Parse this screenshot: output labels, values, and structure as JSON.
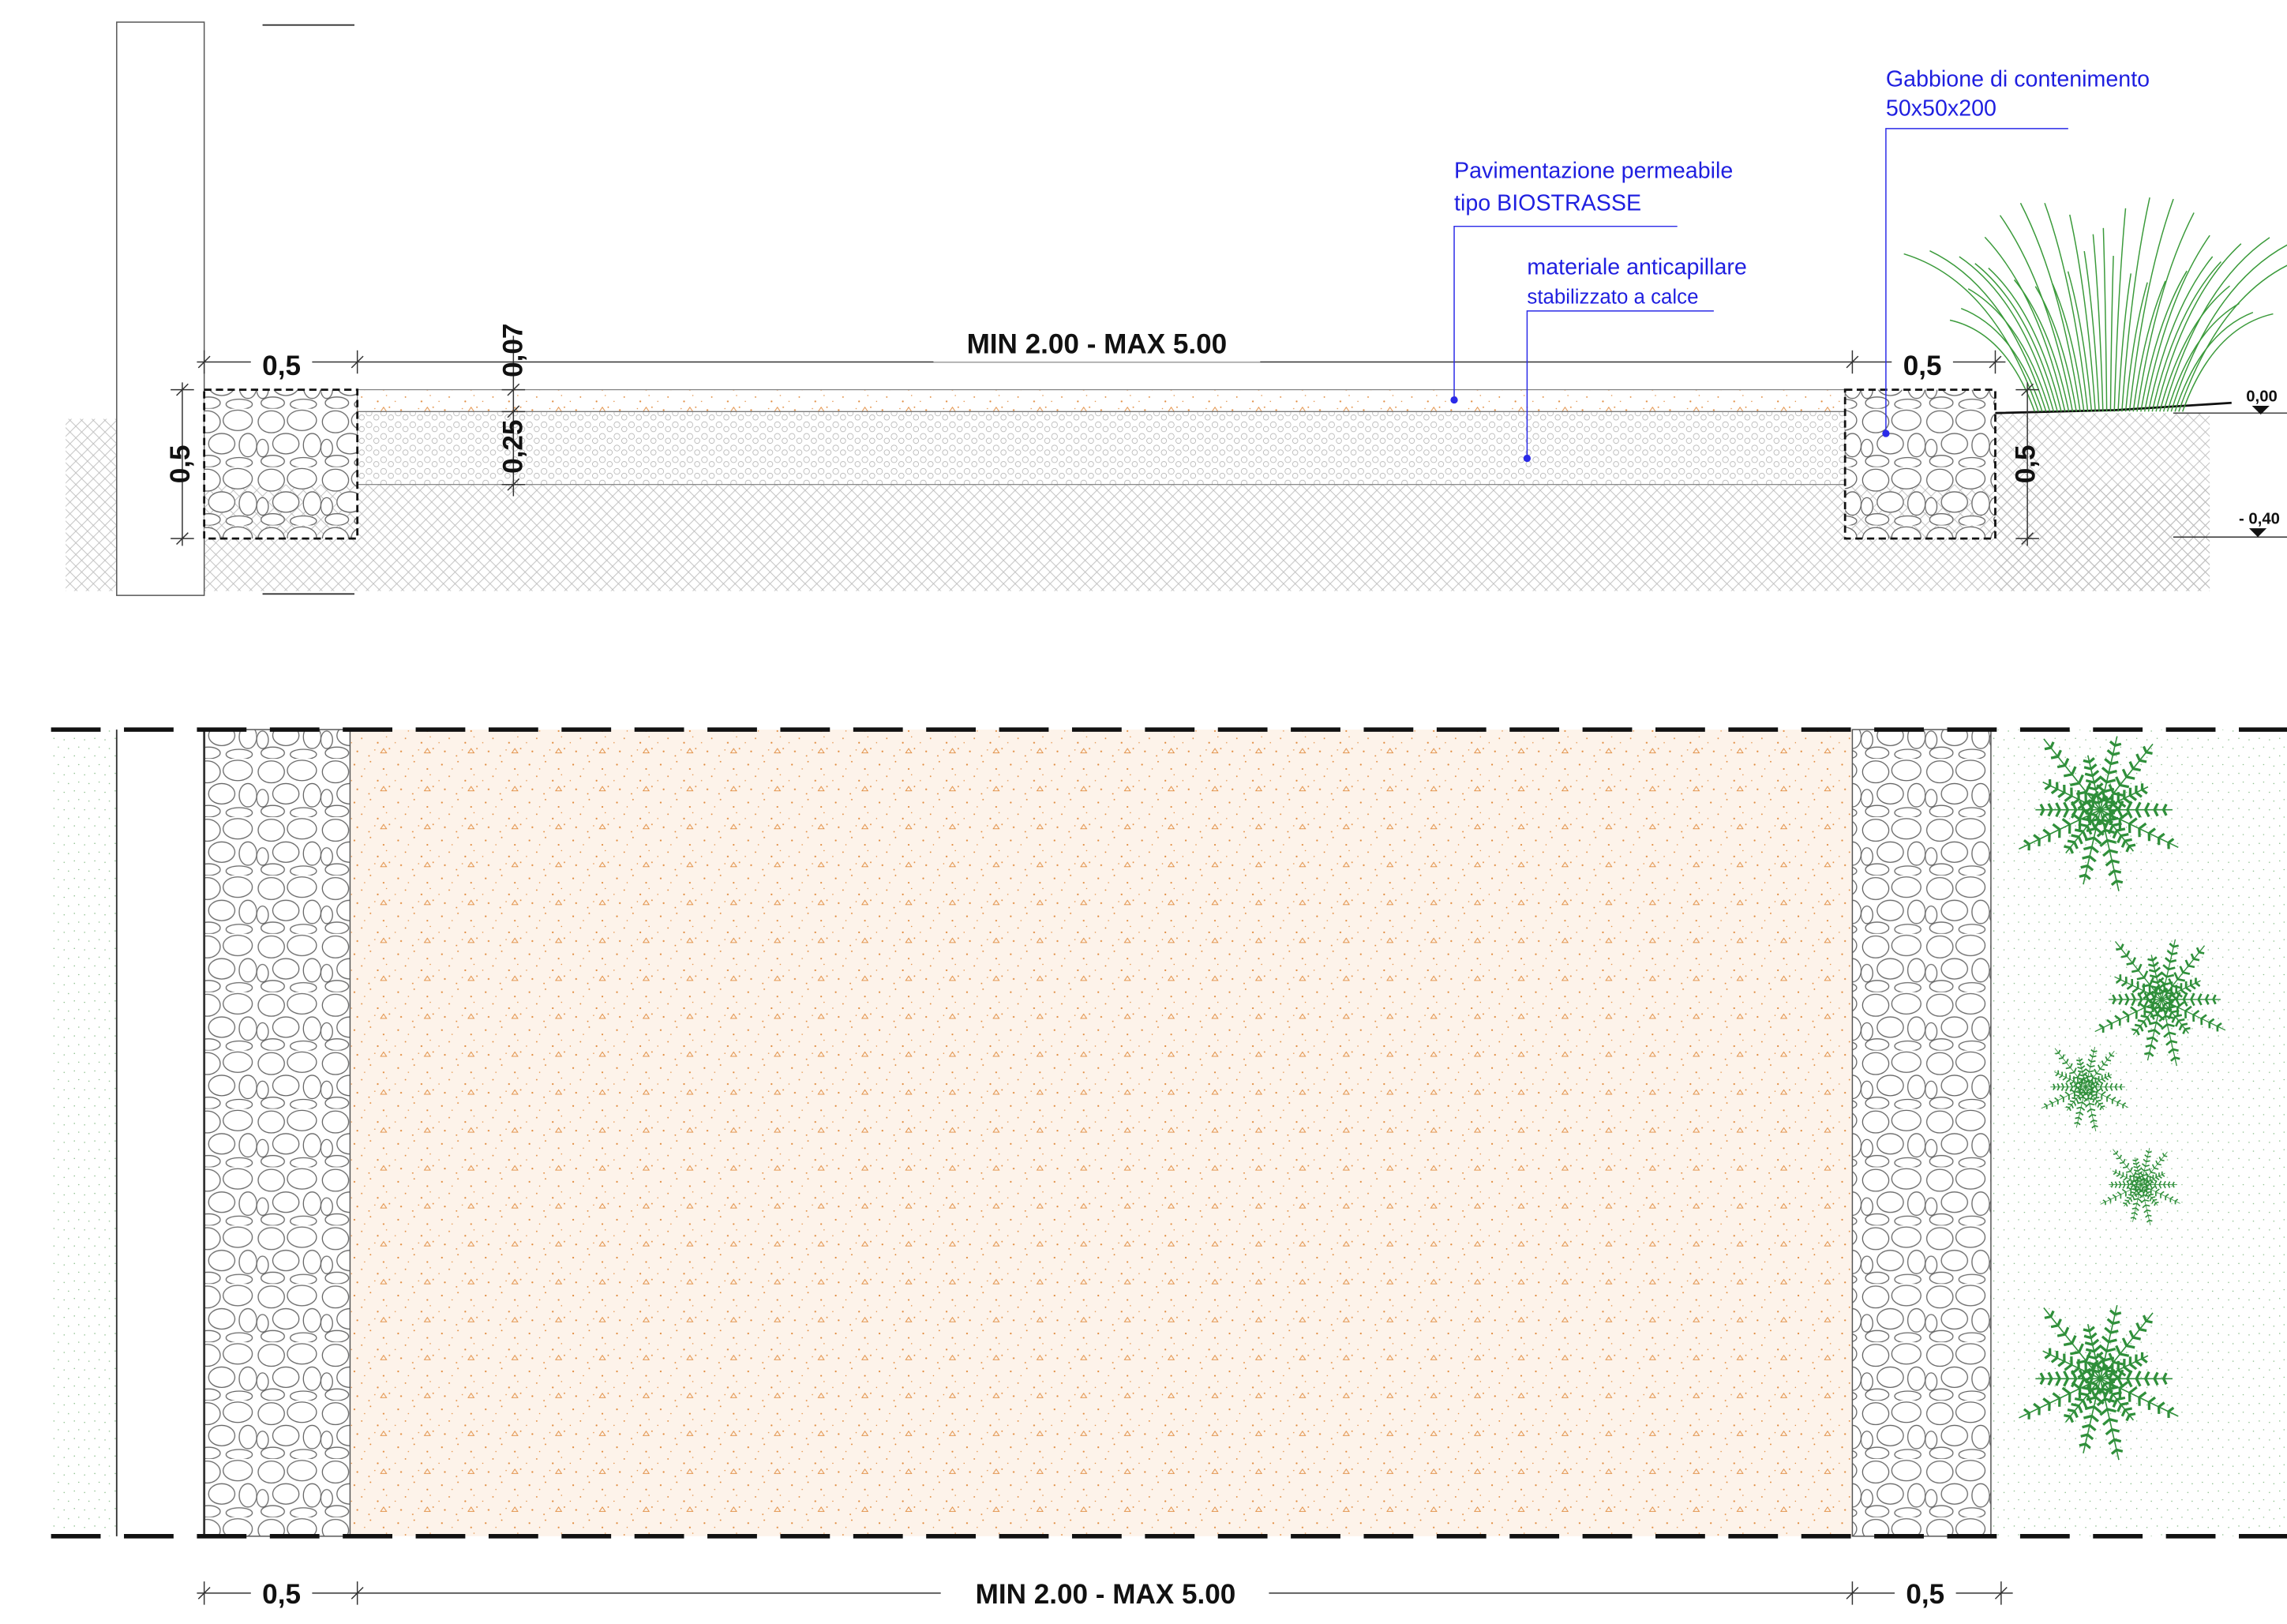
{
  "section": {
    "dimensions": {
      "gabion_left_width": "0,5",
      "path_width": "MIN 2.00 - MAX 5.00",
      "gabion_right_width": "0,5",
      "paving_thickness": "0,07",
      "subbase_thickness": "0,25",
      "gabion_left_height": "0,5",
      "gabion_right_height": "0,5"
    },
    "levels": [
      "0,00",
      "- 0,40"
    ],
    "annotations": [
      {
        "lines": [
          "Pavimentazione permeabile",
          "tipo BIOSTRASSE"
        ]
      },
      {
        "lines": [
          "materiale anticapillare",
          "stabilizzato a calce"
        ]
      },
      {
        "lines": [
          "Gabbione di contenimento",
          "50x50x200"
        ]
      }
    ]
  },
  "plan": {
    "dimensions": {
      "gabion_left_width": "0,5",
      "path_width": "MIN 2.00 - MAX 5.00",
      "gabion_right_width": "0,5"
    }
  }
}
